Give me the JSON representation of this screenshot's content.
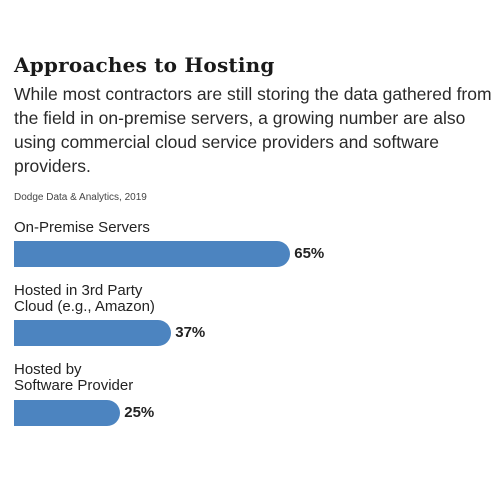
{
  "chart_data": {
    "type": "bar",
    "orientation": "horizontal",
    "title": "Approaches to Hosting",
    "subtitle": "While most contractors are still storing the data gathered from the field in on-premise servers, a growing number are also using commercial cloud service providers and software providers.",
    "source": "Dodge Data & Analytics, 2019",
    "categories": [
      "On-Premise Servers",
      "Hosted in 3rd Party\nCloud (e.g., Amazon)",
      "Hosted by\nSoftware Provider"
    ],
    "values": [
      65,
      37,
      25
    ],
    "value_labels": [
      "65%",
      "37%",
      "25%"
    ],
    "xlim": [
      0,
      100
    ],
    "grid": false,
    "legend": "none",
    "bar_color": "#4c84c0"
  }
}
